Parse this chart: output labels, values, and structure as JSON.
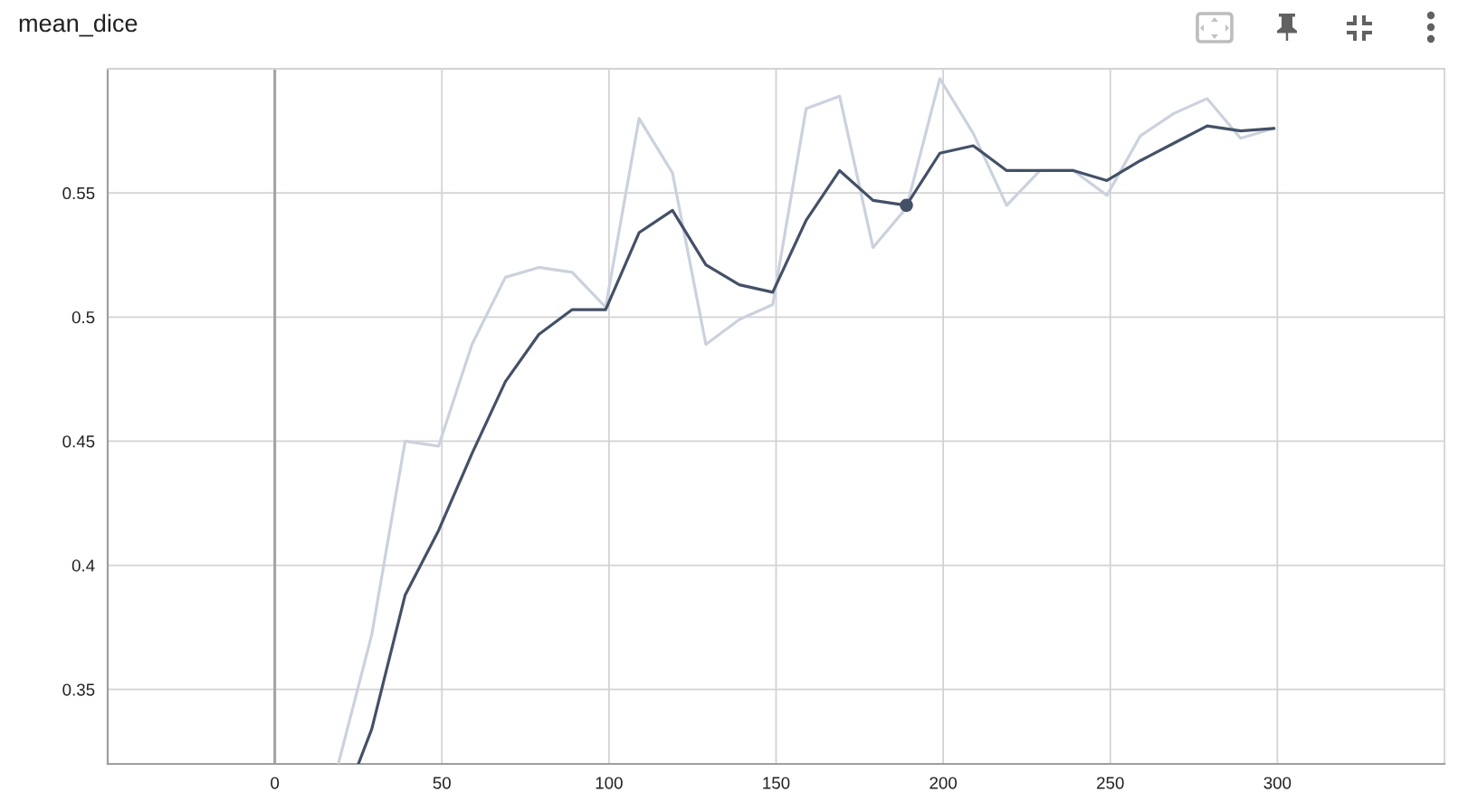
{
  "chart_data": {
    "type": "line",
    "title": "mean_dice",
    "x": [
      19,
      29,
      39,
      49,
      59,
      69,
      79,
      89,
      99,
      109,
      119,
      129,
      139,
      149,
      159,
      169,
      179,
      189,
      199,
      209,
      219,
      229,
      239,
      249,
      259,
      269,
      279,
      289,
      299
    ],
    "series": [
      {
        "color": "#cbd2dd",
        "values": [
          0.32,
          0.372,
          0.45,
          0.448,
          0.489,
          0.516,
          0.52,
          0.518,
          0.504,
          0.58,
          0.558,
          0.489,
          0.499,
          0.505,
          0.584,
          0.589,
          0.528,
          0.544,
          0.596,
          0.574,
          0.545,
          0.559,
          0.559,
          0.549,
          0.573,
          0.582,
          0.588,
          0.572,
          0.576
        ]
      },
      {
        "color": "#435066",
        "x": [
          25,
          29,
          39,
          49,
          59,
          69,
          79,
          89,
          99,
          109,
          119,
          129,
          139,
          149,
          159,
          169,
          179,
          189,
          199,
          209,
          219,
          229,
          239,
          249,
          259,
          269,
          279,
          289,
          299
        ],
        "values": [
          0.32,
          0.334,
          0.388,
          0.414,
          0.445,
          0.474,
          0.493,
          0.503,
          0.503,
          0.534,
          0.543,
          0.521,
          0.513,
          0.51,
          0.539,
          0.559,
          0.547,
          0.545,
          0.566,
          0.569,
          0.559,
          0.559,
          0.559,
          0.555,
          0.563,
          0.57,
          0.577,
          0.575,
          0.576
        ]
      },
      {
        "type": "scatter",
        "color": "#435066",
        "x": [
          189
        ],
        "values": [
          0.545
        ],
        "marker": "circle"
      }
    ],
    "xlim": [
      -50,
      350
    ],
    "ylim": [
      0.32,
      0.6
    ],
    "xticks": [
      0,
      50,
      100,
      150,
      200,
      250,
      300
    ],
    "yticks": [
      0.35,
      0.4,
      0.45,
      0.5,
      0.55
    ],
    "grid": true,
    "ref_lines": [
      {
        "axis": "x",
        "value": 0,
        "color": "#a3a3a3"
      }
    ]
  }
}
